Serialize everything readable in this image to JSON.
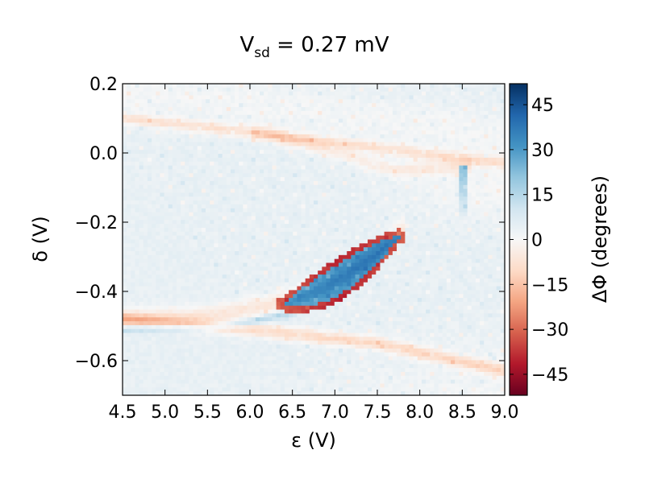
{
  "chart_data": {
    "type": "heatmap",
    "title": {
      "main": "V",
      "subscript": "sd",
      "rest": " = 0.27 mV"
    },
    "xlabel": "ε (V)",
    "ylabel": "δ (V)",
    "xlim": [
      4.5,
      9.0
    ],
    "ylim": [
      -0.7,
      0.2
    ],
    "x_ticks": [
      {
        "value": 4.5,
        "label": "4.5"
      },
      {
        "value": 5.0,
        "label": "5.0"
      },
      {
        "value": 5.5,
        "label": "5.5"
      },
      {
        "value": 6.0,
        "label": "6.0"
      },
      {
        "value": 6.5,
        "label": "6.5"
      },
      {
        "value": 7.0,
        "label": "7.0"
      },
      {
        "value": 7.5,
        "label": "7.5"
      },
      {
        "value": 8.0,
        "label": "8.0"
      },
      {
        "value": 8.5,
        "label": "8.5"
      },
      {
        "value": 9.0,
        "label": "9.0"
      }
    ],
    "y_ticks": [
      {
        "value": 0.2,
        "label": "0.2"
      },
      {
        "value": 0.0,
        "label": "0.0"
      },
      {
        "value": -0.2,
        "label": "−0.2"
      },
      {
        "value": -0.4,
        "label": "−0.4"
      },
      {
        "value": -0.6,
        "label": "−0.6"
      }
    ],
    "colorbar": {
      "label": "ΔΦ (degrees)",
      "range": [
        -52,
        52
      ],
      "ticks": [
        {
          "value": 45,
          "label": "45"
        },
        {
          "value": 30,
          "label": "30"
        },
        {
          "value": 15,
          "label": "15"
        },
        {
          "value": 0,
          "label": "0"
        },
        {
          "value": -15,
          "label": "−15"
        },
        {
          "value": -30,
          "label": "−30"
        },
        {
          "value": -45,
          "label": "−45"
        }
      ],
      "colormap": "RdBu",
      "colors": [
        "#67001f",
        "#b2182b",
        "#d6604d",
        "#f4a582",
        "#fddbc7",
        "#f7f7f7",
        "#d1e5f0",
        "#92c5de",
        "#4393c3",
        "#2166ac",
        "#053061"
      ]
    },
    "grid_size": {
      "nx": 92,
      "ny": 80
    },
    "features": {
      "background_level": 4,
      "upper_line": {
        "points": [
          [
            4.5,
            0.1
          ],
          [
            6.0,
            0.06
          ],
          [
            8.0,
            0.0
          ],
          [
            9.0,
            -0.03
          ]
        ],
        "level": -12
      },
      "lower_line": {
        "points": [
          [
            4.5,
            -0.48
          ],
          [
            6.0,
            -0.51
          ],
          [
            7.5,
            -0.55
          ],
          [
            9.0,
            -0.63
          ]
        ],
        "level": -14
      },
      "left_upper_branch": {
        "points": [
          [
            4.5,
            -0.48
          ],
          [
            5.5,
            -0.47
          ],
          [
            6.2,
            -0.44
          ],
          [
            7.0,
            -0.38
          ],
          [
            7.8,
            -0.22
          ]
        ],
        "level": -10
      },
      "left_lower_branch": {
        "points": [
          [
            4.6,
            -0.51
          ],
          [
            5.5,
            -0.505
          ],
          [
            6.0,
            -0.49
          ],
          [
            6.5,
            -0.46
          ]
        ],
        "level": 12
      },
      "blue_lens": {
        "start": [
          6.4,
          -0.44
        ],
        "end": [
          7.76,
          -0.24
        ],
        "level": 34,
        "rim_level": -40
      },
      "upper_arc": {
        "points": [
          [
            6.1,
            0.06
          ],
          [
            6.9,
            0.01
          ],
          [
            7.7,
            -0.05
          ],
          [
            8.5,
            -0.04
          ]
        ],
        "level": -8
      },
      "spike_8_5": {
        "x": 8.5,
        "y_range": [
          -0.18,
          -0.04
        ],
        "level": 22
      },
      "diagonal_streaks": 18
    }
  }
}
